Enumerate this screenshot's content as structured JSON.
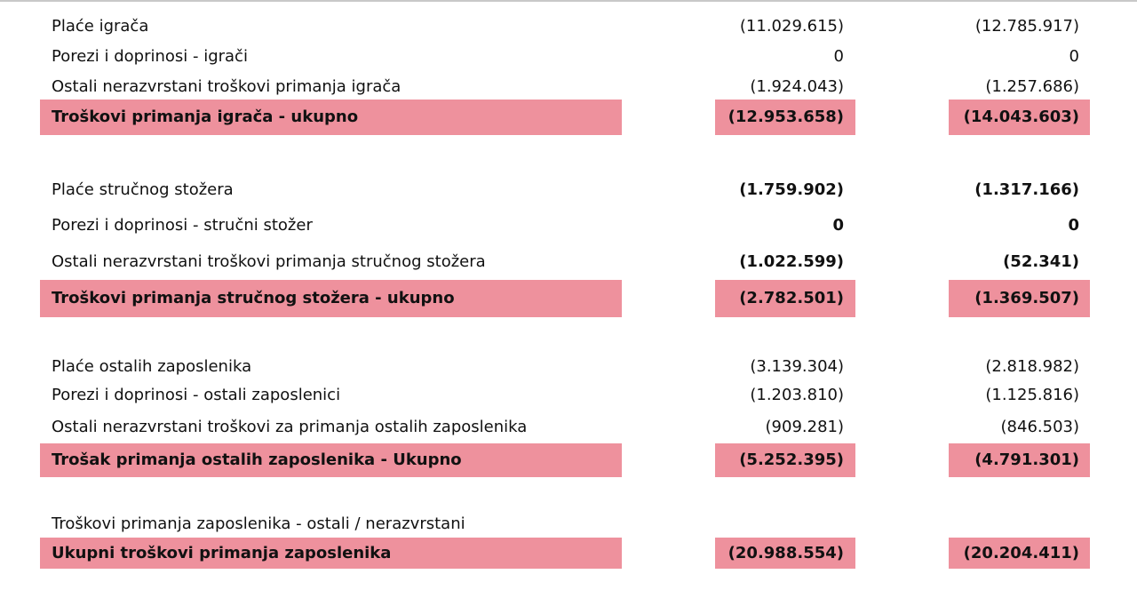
{
  "sections": [
    {
      "rows": [
        [
          "Plaće igrača",
          "(11.029.615)",
          "(12.785.917)"
        ],
        [
          "Porezi i doprinosi - igrači",
          "0",
          "0"
        ],
        [
          "Ostali nerazvrstani troškovi primanja igrača",
          "(1.924.043)",
          "(1.257.686)"
        ]
      ],
      "total": [
        "Troškovi primanja igrača - ukupno",
        "(12.953.658)",
        "(14.043.603)"
      ]
    },
    {
      "rows": [
        [
          "Plaće stručnog stožera",
          "(1.759.902)",
          "(1.317.166)"
        ],
        [
          "Porezi i doprinosi - stručni stožer",
          "0",
          "0"
        ],
        [
          "Ostali nerazvrstani troškovi primanja stručnog stožera",
          "(1.022.599)",
          "(52.341)"
        ]
      ],
      "total": [
        "Troškovi primanja stručnog stožera - ukupno",
        "(2.782.501)",
        "(1.369.507)"
      ]
    },
    {
      "rows": [
        [
          "Plaće ostalih zaposlenika",
          "(3.139.304)",
          "(2.818.982)"
        ],
        [
          "Porezi i doprinosi - ostali zaposlenici",
          "(1.203.810)",
          "(1.125.816)"
        ],
        [
          "Ostali nerazvrstani troškovi za primanja ostalih zaposlenika",
          "(909.281)",
          "(846.503)"
        ]
      ],
      "total": [
        "Trošak primanja ostalih zaposlenika - Ukupno",
        "(5.252.395)",
        "(4.791.301)"
      ]
    },
    {
      "rows": [
        [
          "Troškovi primanja zaposlenika - ostali / nerazvrstani"
        ]
      ],
      "total": [
        "Ukupni troškovi primanja zaposlenika",
        "(20.988.554)",
        "(20.204.411)"
      ]
    }
  ]
}
